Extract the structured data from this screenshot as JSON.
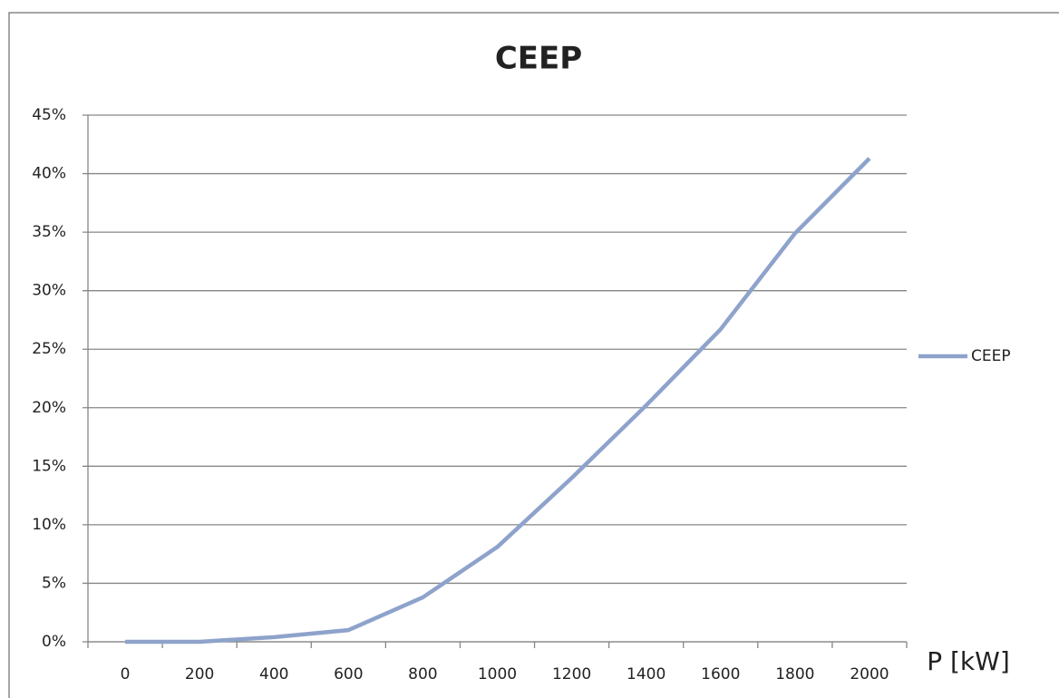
{
  "chart_data": {
    "type": "line",
    "title": "CEEP",
    "x_label": "P [kW]",
    "categories": [
      "0",
      "200",
      "400",
      "600",
      "800",
      "1000",
      "1200",
      "1400",
      "1600",
      "1800",
      "2000"
    ],
    "series": [
      {
        "name": "CEEP",
        "color": "#8ea3cb",
        "values": [
          0,
          0,
          0.4,
          1.0,
          3.8,
          8.1,
          14.0,
          20.2,
          26.7,
          34.9,
          41.3
        ]
      }
    ],
    "ylim": [
      0,
      45
    ],
    "yticks": [
      {
        "value": 0,
        "label": "0%"
      },
      {
        "value": 5,
        "label": "5%"
      },
      {
        "value": 10,
        "label": "10%"
      },
      {
        "value": 15,
        "label": "15%"
      },
      {
        "value": 20,
        "label": "20%"
      },
      {
        "value": 25,
        "label": "25%"
      },
      {
        "value": 30,
        "label": "30%"
      },
      {
        "value": 35,
        "label": "35%"
      },
      {
        "value": 40,
        "label": "40%"
      },
      {
        "value": 45,
        "label": "45%"
      }
    ],
    "grid": true,
    "legend": "right"
  }
}
